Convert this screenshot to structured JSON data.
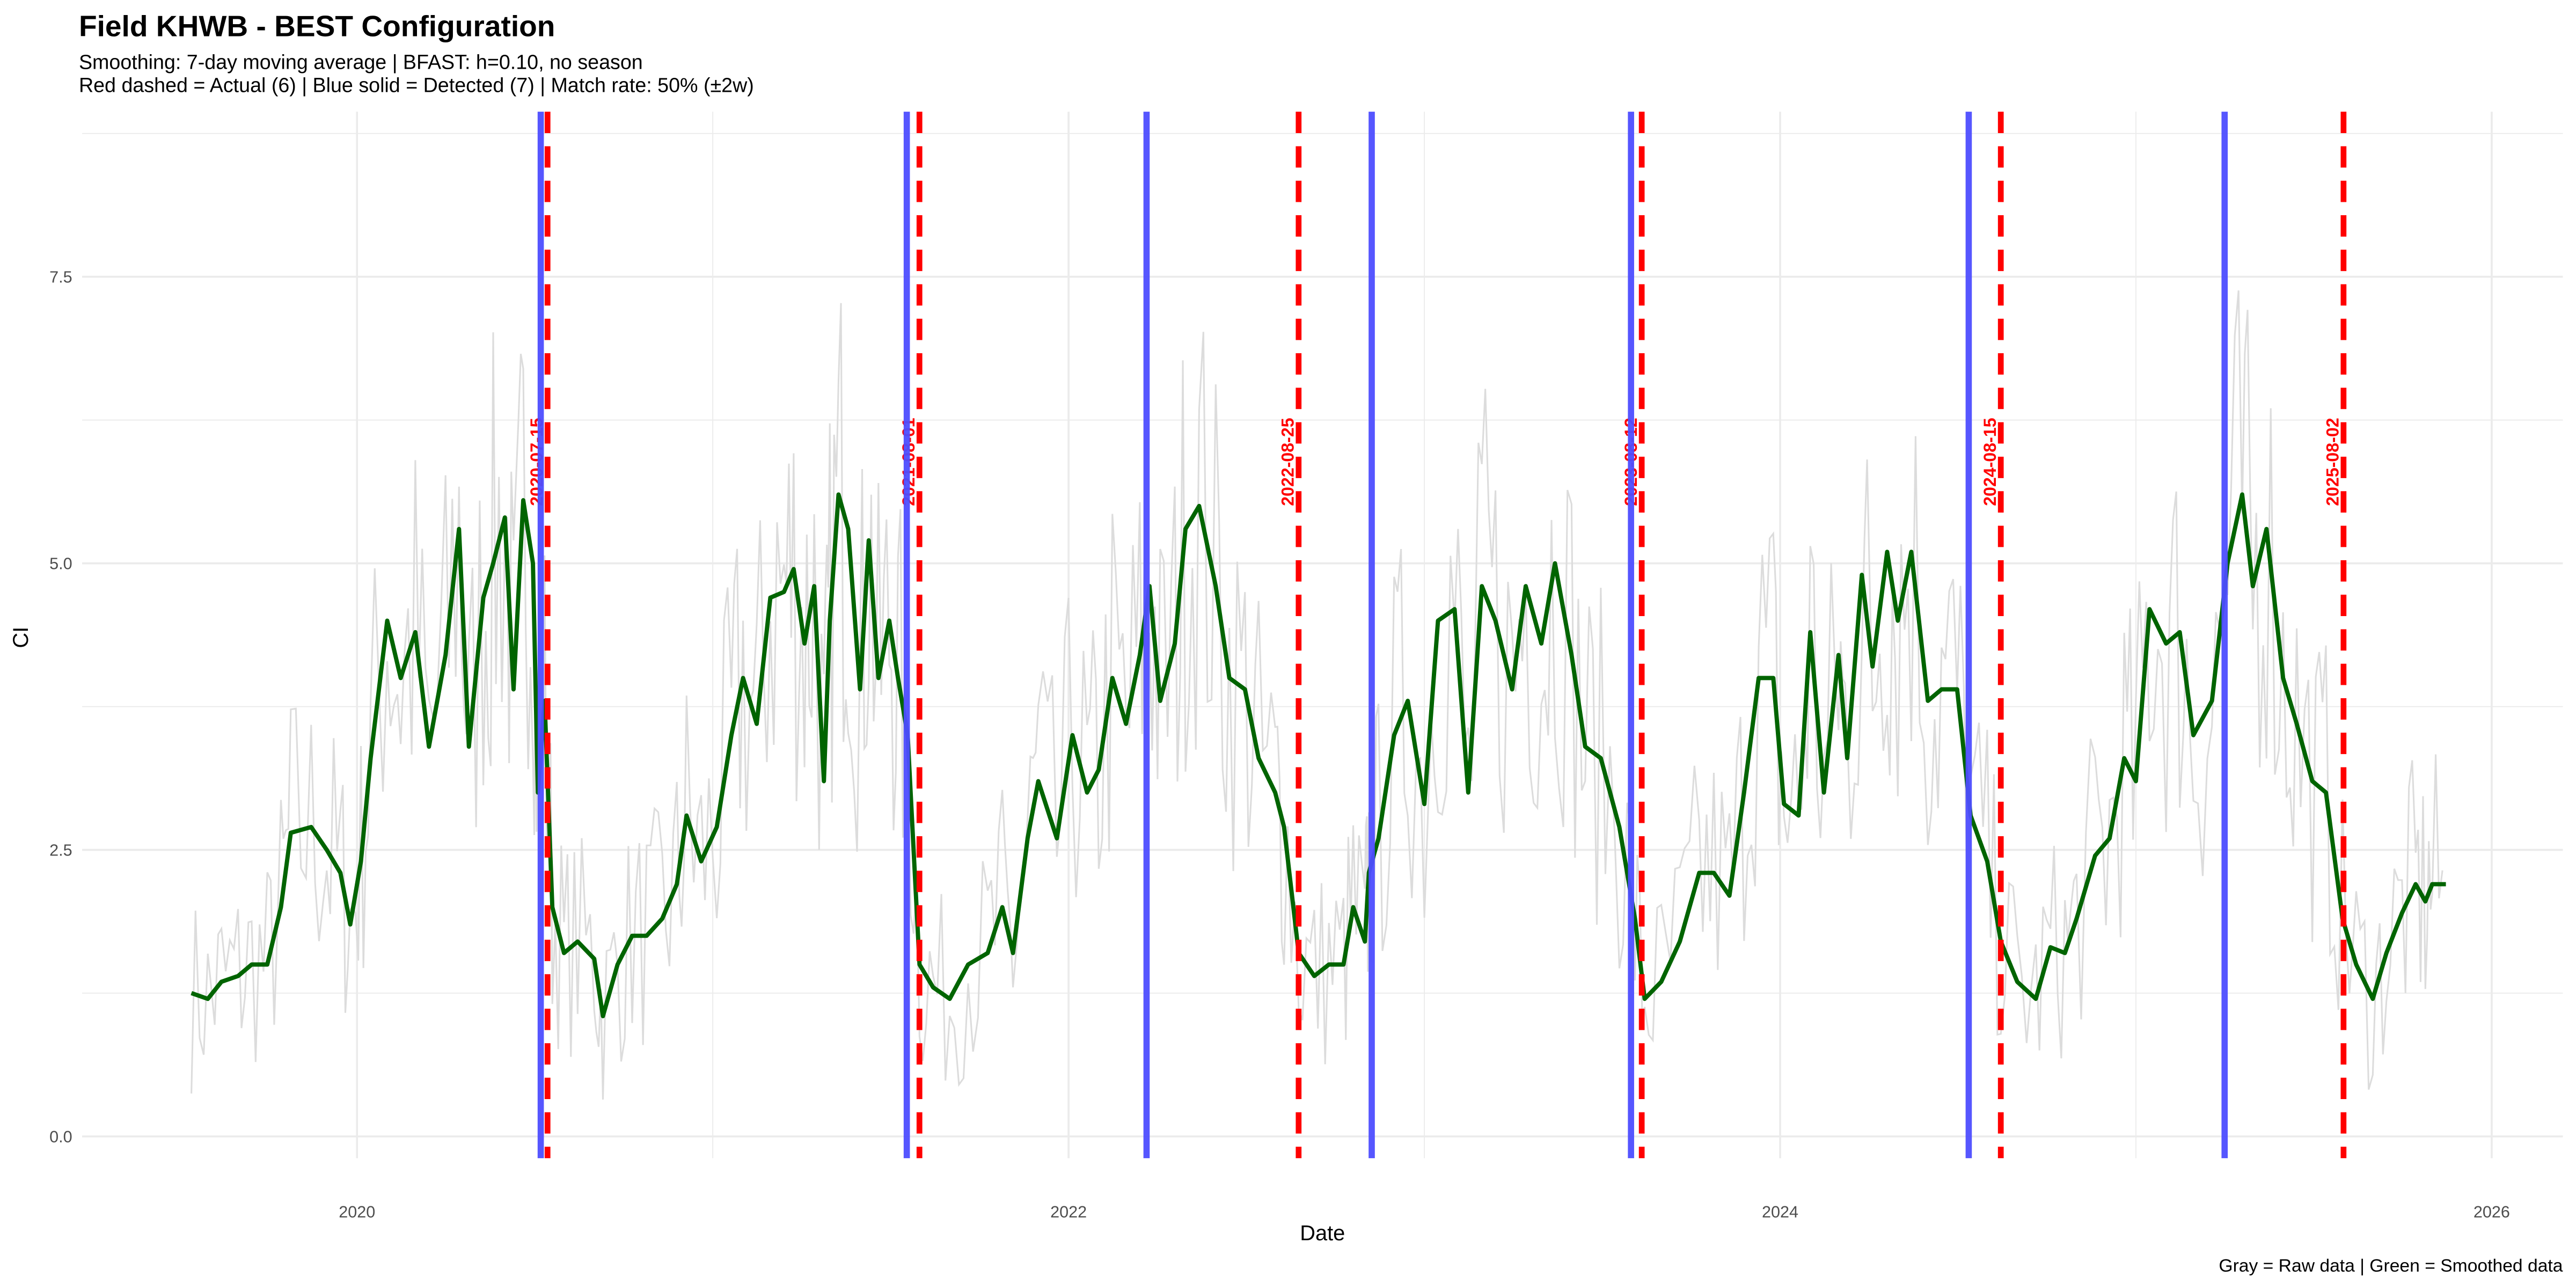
{
  "chart_data": {
    "type": "line",
    "title": "Field KHWB - BEST Configuration",
    "subtitle_lines": [
      "Smoothing: 7-day moving average | BFAST: h=0.10, no season",
      "Red dashed = Actual (6) | Blue solid = Detected (7) | Match rate: 50% (±2w)"
    ],
    "caption": "Gray = Raw data | Green = Smoothed data",
    "xlabel": "Date",
    "ylabel": "CI",
    "x_ticks": [
      "2020",
      "2022",
      "2024",
      "2026"
    ],
    "y_ticks": [
      "0.0",
      "2.5",
      "5.0",
      "7.5"
    ],
    "xlim": [
      "2019-03-25",
      "2026-03-15"
    ],
    "ylim": [
      -0.19,
      8.94
    ],
    "grid": true,
    "colors": {
      "raw": "#dcdcdc",
      "smoothed": "#006400",
      "detected": "#4d4dff",
      "actual": "#ff0000",
      "grid": "#ebebeb"
    },
    "actual_breaks": [
      "2020-07-15",
      "2021-08-01",
      "2022-08-25",
      "2023-08-12",
      "2024-08-15",
      "2025-08-02"
    ],
    "detected_breaks": [
      "2020-07-08",
      "2021-07-19",
      "2022-03-22",
      "2022-11-08",
      "2023-08-01",
      "2024-07-13",
      "2025-04-02"
    ],
    "series": [
      {
        "name": "Smoothed",
        "points": [
          [
            "2019-07-15",
            1.25
          ],
          [
            "2019-08-01",
            1.2
          ],
          [
            "2019-08-15",
            1.35
          ],
          [
            "2019-09-01",
            1.4
          ],
          [
            "2019-09-15",
            1.5
          ],
          [
            "2019-10-01",
            1.5
          ],
          [
            "2019-10-15",
            2.0
          ],
          [
            "2019-10-25",
            2.65
          ],
          [
            "2019-11-15",
            2.7
          ],
          [
            "2019-12-01",
            2.5
          ],
          [
            "2019-12-15",
            2.3
          ],
          [
            "2019-12-25",
            1.85
          ],
          [
            "2020-01-05",
            2.4
          ],
          [
            "2020-01-15",
            3.3
          ],
          [
            "2020-02-01",
            4.5
          ],
          [
            "2020-02-15",
            4.0
          ],
          [
            "2020-03-01",
            4.4
          ],
          [
            "2020-03-15",
            3.4
          ],
          [
            "2020-04-01",
            4.2
          ],
          [
            "2020-04-15",
            5.3
          ],
          [
            "2020-04-25",
            3.4
          ],
          [
            "2020-05-10",
            4.7
          ],
          [
            "2020-05-20",
            5.0
          ],
          [
            "2020-06-01",
            5.4
          ],
          [
            "2020-06-10",
            3.9
          ],
          [
            "2020-06-20",
            5.55
          ],
          [
            "2020-06-30",
            5.0
          ],
          [
            "2020-07-05",
            3.0
          ],
          [
            "2020-07-12",
            3.8
          ],
          [
            "2020-07-20",
            2.0
          ],
          [
            "2020-08-01",
            1.6
          ],
          [
            "2020-08-15",
            1.7
          ],
          [
            "2020-09-01",
            1.55
          ],
          [
            "2020-09-10",
            1.05
          ],
          [
            "2020-09-25",
            1.5
          ],
          [
            "2020-10-10",
            1.75
          ],
          [
            "2020-10-25",
            1.75
          ],
          [
            "2020-11-10",
            1.9
          ],
          [
            "2020-11-25",
            2.2
          ],
          [
            "2020-12-05",
            2.8
          ],
          [
            "2020-12-20",
            2.4
          ],
          [
            "2021-01-05",
            2.7
          ],
          [
            "2021-01-20",
            3.5
          ],
          [
            "2021-02-01",
            4.0
          ],
          [
            "2021-02-15",
            3.6
          ],
          [
            "2021-03-01",
            4.7
          ],
          [
            "2021-03-15",
            4.75
          ],
          [
            "2021-03-25",
            4.95
          ],
          [
            "2021-04-05",
            4.3
          ],
          [
            "2021-04-15",
            4.8
          ],
          [
            "2021-04-25",
            3.1
          ],
          [
            "2021-05-01",
            4.5
          ],
          [
            "2021-05-10",
            5.6
          ],
          [
            "2021-05-20",
            5.3
          ],
          [
            "2021-06-01",
            3.9
          ],
          [
            "2021-06-10",
            5.2
          ],
          [
            "2021-06-20",
            4.0
          ],
          [
            "2021-07-01",
            4.5
          ],
          [
            "2021-07-10",
            4.0
          ],
          [
            "2021-07-20",
            3.5
          ],
          [
            "2021-08-01",
            1.5
          ],
          [
            "2021-08-15",
            1.3
          ],
          [
            "2021-09-01",
            1.2
          ],
          [
            "2021-09-20",
            1.5
          ],
          [
            "2021-10-10",
            1.6
          ],
          [
            "2021-10-25",
            2.0
          ],
          [
            "2021-11-05",
            1.6
          ],
          [
            "2021-11-20",
            2.6
          ],
          [
            "2021-12-01",
            3.1
          ],
          [
            "2021-12-20",
            2.6
          ],
          [
            "2022-01-05",
            3.5
          ],
          [
            "2022-01-20",
            3.0
          ],
          [
            "2022-02-01",
            3.2
          ],
          [
            "2022-02-15",
            4.0
          ],
          [
            "2022-03-01",
            3.6
          ],
          [
            "2022-03-15",
            4.2
          ],
          [
            "2022-03-25",
            4.8
          ],
          [
            "2022-04-05",
            3.8
          ],
          [
            "2022-04-20",
            4.3
          ],
          [
            "2022-05-01",
            5.3
          ],
          [
            "2022-05-15",
            5.5
          ],
          [
            "2022-06-01",
            4.8
          ],
          [
            "2022-06-15",
            4.0
          ],
          [
            "2022-07-01",
            3.9
          ],
          [
            "2022-07-15",
            3.3
          ],
          [
            "2022-08-01",
            3.0
          ],
          [
            "2022-08-10",
            2.7
          ],
          [
            "2022-08-25",
            1.6
          ],
          [
            "2022-09-10",
            1.4
          ],
          [
            "2022-09-25",
            1.5
          ],
          [
            "2022-10-10",
            1.5
          ],
          [
            "2022-10-20",
            2.0
          ],
          [
            "2022-11-01",
            1.7
          ],
          [
            "2022-11-05",
            2.3
          ],
          [
            "2022-11-15",
            2.6
          ],
          [
            "2022-12-01",
            3.5
          ],
          [
            "2022-12-15",
            3.8
          ],
          [
            "2023-01-01",
            2.9
          ],
          [
            "2023-01-15",
            4.5
          ],
          [
            "2023-02-01",
            4.6
          ],
          [
            "2023-02-15",
            3.0
          ],
          [
            "2023-03-01",
            4.8
          ],
          [
            "2023-03-15",
            4.5
          ],
          [
            "2023-04-01",
            3.9
          ],
          [
            "2023-04-15",
            4.8
          ],
          [
            "2023-05-01",
            4.3
          ],
          [
            "2023-05-15",
            5.0
          ],
          [
            "2023-06-01",
            4.2
          ],
          [
            "2023-06-15",
            3.4
          ],
          [
            "2023-07-01",
            3.3
          ],
          [
            "2023-07-20",
            2.7
          ],
          [
            "2023-08-05",
            1.9
          ],
          [
            "2023-08-15",
            1.2
          ],
          [
            "2023-09-01",
            1.35
          ],
          [
            "2023-09-20",
            1.7
          ],
          [
            "2023-10-10",
            2.3
          ],
          [
            "2023-10-25",
            2.3
          ],
          [
            "2023-11-10",
            2.1
          ],
          [
            "2023-11-25",
            3.0
          ],
          [
            "2023-12-10",
            4.0
          ],
          [
            "2023-12-25",
            4.0
          ],
          [
            "2024-01-05",
            2.9
          ],
          [
            "2024-01-20",
            2.8
          ],
          [
            "2024-02-01",
            4.4
          ],
          [
            "2024-02-15",
            3.0
          ],
          [
            "2024-03-01",
            4.2
          ],
          [
            "2024-03-10",
            3.3
          ],
          [
            "2024-03-25",
            4.9
          ],
          [
            "2024-04-05",
            4.1
          ],
          [
            "2024-04-20",
            5.1
          ],
          [
            "2024-05-01",
            4.5
          ],
          [
            "2024-05-15",
            5.1
          ],
          [
            "2024-06-01",
            3.8
          ],
          [
            "2024-06-15",
            3.9
          ],
          [
            "2024-07-01",
            3.9
          ],
          [
            "2024-07-15",
            2.8
          ],
          [
            "2024-08-01",
            2.4
          ],
          [
            "2024-08-15",
            1.7
          ],
          [
            "2024-09-01",
            1.35
          ],
          [
            "2024-09-20",
            1.2
          ],
          [
            "2024-10-05",
            1.65
          ],
          [
            "2024-10-20",
            1.6
          ],
          [
            "2024-11-01",
            1.9
          ],
          [
            "2024-11-20",
            2.45
          ],
          [
            "2024-12-05",
            2.6
          ],
          [
            "2024-12-20",
            3.3
          ],
          [
            "2025-01-01",
            3.1
          ],
          [
            "2025-01-15",
            4.6
          ],
          [
            "2025-02-01",
            4.3
          ],
          [
            "2025-02-15",
            4.4
          ],
          [
            "2025-03-01",
            3.5
          ],
          [
            "2025-03-20",
            3.8
          ],
          [
            "2025-04-05",
            5.0
          ],
          [
            "2025-04-20",
            5.6
          ],
          [
            "2025-05-01",
            4.8
          ],
          [
            "2025-05-15",
            5.3
          ],
          [
            "2025-06-01",
            4.0
          ],
          [
            "2025-06-15",
            3.6
          ],
          [
            "2025-07-01",
            3.1
          ],
          [
            "2025-07-15",
            3.0
          ],
          [
            "2025-08-01",
            1.9
          ],
          [
            "2025-08-15",
            1.5
          ],
          [
            "2025-09-01",
            1.2
          ],
          [
            "2025-09-15",
            1.6
          ],
          [
            "2025-10-01",
            1.95
          ],
          [
            "2025-10-15",
            2.2
          ],
          [
            "2025-10-25",
            2.05
          ],
          [
            "2025-11-01",
            2.2
          ],
          [
            "2025-11-15",
            2.2
          ]
        ]
      }
    ]
  }
}
